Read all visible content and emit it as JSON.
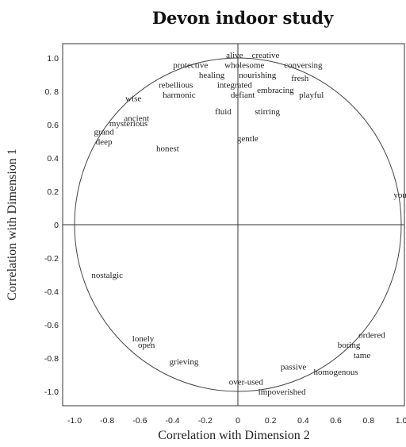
{
  "chart_data": {
    "type": "scatter",
    "title": "Devon indoor study",
    "xlabel": "Correlation with Dimension 2",
    "ylabel": "Correlation with Dimension 1",
    "xlim": [
      -1.1,
      1.1
    ],
    "ylim": [
      -1.1,
      1.1
    ],
    "x_ticks": [
      "-1.0",
      "-0.8",
      "-0.6",
      "-0.4",
      "-0.2",
      "0",
      "0.2",
      "0.4",
      "0.6",
      "0.8",
      "1.0"
    ],
    "y_ticks": [
      "1.0",
      "0. 8",
      "0.6",
      "0.4",
      "0.2",
      "0",
      "-0.2",
      "-0.4",
      "-0.6",
      "-0.8",
      "-1.0"
    ],
    "grid": false,
    "unit_circle": true,
    "points": [
      {
        "label": "alive",
        "x": -0.02,
        "y": 1.02
      },
      {
        "label": "creative",
        "x": 0.17,
        "y": 1.02
      },
      {
        "label": "protective",
        "x": -0.29,
        "y": 0.96
      },
      {
        "label": "wholesome",
        "x": 0.04,
        "y": 0.96
      },
      {
        "label": "conversing",
        "x": 0.4,
        "y": 0.96
      },
      {
        "label": "healing",
        "x": -0.16,
        "y": 0.9
      },
      {
        "label": "nourishing",
        "x": 0.12,
        "y": 0.9
      },
      {
        "label": "fresh",
        "x": 0.38,
        "y": 0.88
      },
      {
        "label": "rebellious",
        "x": -0.38,
        "y": 0.84
      },
      {
        "label": "integrated",
        "x": -0.02,
        "y": 0.84
      },
      {
        "label": "embracing",
        "x": 0.23,
        "y": 0.81
      },
      {
        "label": "playful",
        "x": 0.45,
        "y": 0.78
      },
      {
        "label": "harmonic",
        "x": -0.36,
        "y": 0.78
      },
      {
        "label": "defiant",
        "x": 0.03,
        "y": 0.78
      },
      {
        "label": "wise",
        "x": -0.64,
        "y": 0.76
      },
      {
        "label": "fluid",
        "x": -0.09,
        "y": 0.68
      },
      {
        "label": "stirring",
        "x": 0.18,
        "y": 0.68
      },
      {
        "label": "ancient",
        "x": -0.62,
        "y": 0.64
      },
      {
        "label": "mysterious",
        "x": -0.67,
        "y": 0.61
      },
      {
        "label": "grand",
        "x": -0.82,
        "y": 0.56
      },
      {
        "label": "gentle",
        "x": 0.06,
        "y": 0.52
      },
      {
        "label": "deep",
        "x": -0.82,
        "y": 0.5
      },
      {
        "label": "honest",
        "x": -0.43,
        "y": 0.46
      },
      {
        "label": "young",
        "x": 1.02,
        "y": 0.18
      },
      {
        "label": "nostalgic",
        "x": -0.8,
        "y": -0.3
      },
      {
        "label": "lonely",
        "x": -0.58,
        "y": -0.68
      },
      {
        "label": "open",
        "x": -0.56,
        "y": -0.72
      },
      {
        "label": "ordered",
        "x": 0.82,
        "y": -0.66
      },
      {
        "label": "boring",
        "x": 0.68,
        "y": -0.72
      },
      {
        "label": "tame",
        "x": 0.76,
        "y": -0.78
      },
      {
        "label": "grieving",
        "x": -0.33,
        "y": -0.82
      },
      {
        "label": "passive",
        "x": 0.34,
        "y": -0.85
      },
      {
        "label": "homogenous",
        "x": 0.6,
        "y": -0.88
      },
      {
        "label": "over-used",
        "x": 0.05,
        "y": -0.94
      },
      {
        "label": "impoverished",
        "x": 0.27,
        "y": -1.0
      }
    ]
  }
}
